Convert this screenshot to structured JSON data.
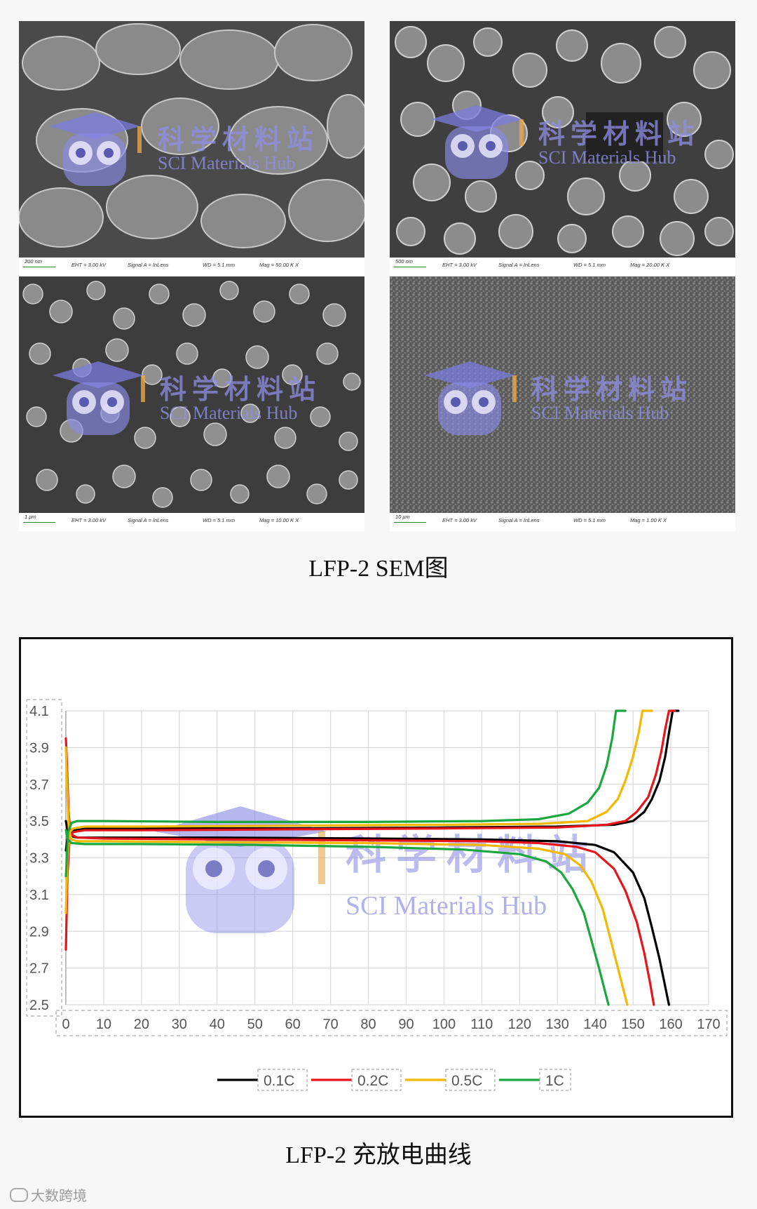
{
  "sem": {
    "caption": "LFP-2  SEM图",
    "panels": [
      {
        "scale": "200 nm",
        "eht": "EHT = 3.00 kV",
        "signal": "Signal A = InLens",
        "wd": "WD = 5.1 mm",
        "mag": "Mag = 50.00 K X"
      },
      {
        "scale": "500 nm",
        "eht": "EHT = 3.00 kV",
        "signal": "Signal A = InLens",
        "wd": "WD = 5.1 mm",
        "mag": "Mag = 20.00 K X"
      },
      {
        "scale": "1 μm",
        "eht": "EHT = 3.00 kV",
        "signal": "Signal A = InLens",
        "wd": "WD = 5.1 mm",
        "mag": "Mag = 10.00 K X"
      },
      {
        "scale": "10 μm",
        "eht": "EHT = 3.00 kV",
        "signal": "Signal A = InLens",
        "wd": "WD = 5.1 mm",
        "mag": "Mag = 1.00 K X"
      }
    ]
  },
  "watermark": {
    "cn": "科学材料站",
    "en": "SCI Materials Hub"
  },
  "chart_caption": "LFP-2  充放电曲线",
  "footer": {
    "text": "大数跨境"
  },
  "colors": {
    "c01": "#000000",
    "c02": "#e8141c",
    "c05": "#f5b800",
    "c1": "#1aa83e",
    "grid": "#d9d9d9",
    "watermark": "#8f8fe6"
  },
  "chart_data": {
    "type": "line",
    "title": "",
    "xlabel": "",
    "ylabel": "",
    "xlim": [
      0,
      170
    ],
    "ylim": [
      2.5,
      4.1
    ],
    "xticks": [
      "0",
      "10",
      "20",
      "30",
      "40",
      "50",
      "60",
      "70",
      "80",
      "90",
      "100",
      "110",
      "120",
      "130",
      "140",
      "150",
      "160",
      "170"
    ],
    "yticks": [
      "2.5",
      "2.7",
      "2.9",
      "3.1",
      "3.3",
      "3.5",
      "3.7",
      "3.9",
      "4.1"
    ],
    "grid": true,
    "legend_position": "bottom",
    "series": [
      {
        "name": "0.1C",
        "color": "#000000",
        "charge": [
          [
            0,
            3.34
          ],
          [
            0.5,
            3.42
          ],
          [
            1,
            3.44
          ],
          [
            2,
            3.45
          ],
          [
            5,
            3.46
          ],
          [
            20,
            3.46
          ],
          [
            60,
            3.46
          ],
          [
            100,
            3.465
          ],
          [
            130,
            3.47
          ],
          [
            145,
            3.48
          ],
          [
            150,
            3.5
          ],
          [
            153,
            3.55
          ],
          [
            155,
            3.62
          ],
          [
            157,
            3.72
          ],
          [
            158.5,
            3.85
          ],
          [
            159.5,
            3.98
          ],
          [
            160.5,
            4.1
          ],
          [
            162,
            4.1
          ]
        ],
        "discharge": [
          [
            0,
            3.5
          ],
          [
            0.5,
            3.44
          ],
          [
            1,
            3.42
          ],
          [
            3,
            3.41
          ],
          [
            10,
            3.41
          ],
          [
            40,
            3.41
          ],
          [
            80,
            3.405
          ],
          [
            110,
            3.4
          ],
          [
            130,
            3.39
          ],
          [
            140,
            3.37
          ],
          [
            145,
            3.33
          ],
          [
            150,
            3.22
          ],
          [
            153,
            3.08
          ],
          [
            155,
            2.92
          ],
          [
            157,
            2.75
          ],
          [
            158.5,
            2.6
          ],
          [
            159.5,
            2.5
          ]
        ]
      },
      {
        "name": "0.2C",
        "color": "#e8141c",
        "charge": [
          [
            0,
            2.8
          ],
          [
            0.4,
            3.2
          ],
          [
            1,
            3.42
          ],
          [
            2,
            3.44
          ],
          [
            5,
            3.45
          ],
          [
            20,
            3.45
          ],
          [
            60,
            3.455
          ],
          [
            100,
            3.46
          ],
          [
            130,
            3.465
          ],
          [
            143,
            3.48
          ],
          [
            148,
            3.5
          ],
          [
            151,
            3.55
          ],
          [
            154,
            3.63
          ],
          [
            156,
            3.75
          ],
          [
            157.5,
            3.88
          ],
          [
            158.5,
            4.0
          ],
          [
            159.5,
            4.1
          ],
          [
            161,
            4.1
          ]
        ],
        "discharge": [
          [
            0,
            3.95
          ],
          [
            0.3,
            3.8
          ],
          [
            0.7,
            3.55
          ],
          [
            1.2,
            3.43
          ],
          [
            3,
            3.41
          ],
          [
            10,
            3.405
          ],
          [
            40,
            3.4
          ],
          [
            80,
            3.395
          ],
          [
            110,
            3.39
          ],
          [
            125,
            3.38
          ],
          [
            135,
            3.36
          ],
          [
            140,
            3.33
          ],
          [
            145,
            3.24
          ],
          [
            148,
            3.12
          ],
          [
            151,
            2.95
          ],
          [
            153,
            2.78
          ],
          [
            154.5,
            2.62
          ],
          [
            155.5,
            2.5
          ]
        ]
      },
      {
        "name": "0.5C",
        "color": "#f5b800",
        "charge": [
          [
            0,
            3.0
          ],
          [
            0.4,
            3.3
          ],
          [
            1,
            3.44
          ],
          [
            2,
            3.46
          ],
          [
            5,
            3.47
          ],
          [
            20,
            3.47
          ],
          [
            60,
            3.475
          ],
          [
            100,
            3.48
          ],
          [
            125,
            3.485
          ],
          [
            138,
            3.5
          ],
          [
            143,
            3.55
          ],
          [
            146,
            3.62
          ],
          [
            148,
            3.72
          ],
          [
            150,
            3.85
          ],
          [
            151.5,
            3.98
          ],
          [
            152.5,
            4.1
          ],
          [
            155,
            4.1
          ]
        ],
        "discharge": [
          [
            0,
            3.9
          ],
          [
            0.3,
            3.7
          ],
          [
            0.8,
            3.45
          ],
          [
            1.5,
            3.4
          ],
          [
            3,
            3.39
          ],
          [
            10,
            3.39
          ],
          [
            40,
            3.385
          ],
          [
            80,
            3.38
          ],
          [
            110,
            3.37
          ],
          [
            125,
            3.35
          ],
          [
            132,
            3.32
          ],
          [
            136,
            3.26
          ],
          [
            139,
            3.17
          ],
          [
            142,
            3.02
          ],
          [
            144,
            2.86
          ],
          [
            146,
            2.7
          ],
          [
            147.5,
            2.58
          ],
          [
            148.5,
            2.5
          ]
        ]
      },
      {
        "name": "1C",
        "color": "#1aa83e",
        "charge": [
          [
            0,
            3.2
          ],
          [
            0.6,
            3.44
          ],
          [
            1.5,
            3.49
          ],
          [
            3,
            3.5
          ],
          [
            10,
            3.5
          ],
          [
            40,
            3.495
          ],
          [
            80,
            3.495
          ],
          [
            110,
            3.5
          ],
          [
            125,
            3.51
          ],
          [
            133,
            3.54
          ],
          [
            138,
            3.6
          ],
          [
            141,
            3.68
          ],
          [
            143,
            3.8
          ],
          [
            144.5,
            3.95
          ],
          [
            145.5,
            4.1
          ],
          [
            148,
            4.1
          ]
        ],
        "discharge": [
          [
            0,
            3.45
          ],
          [
            0.5,
            3.4
          ],
          [
            1.5,
            3.38
          ],
          [
            5,
            3.375
          ],
          [
            20,
            3.375
          ],
          [
            50,
            3.37
          ],
          [
            80,
            3.36
          ],
          [
            105,
            3.345
          ],
          [
            120,
            3.32
          ],
          [
            127,
            3.28
          ],
          [
            131,
            3.22
          ],
          [
            134,
            3.13
          ],
          [
            137,
            3.0
          ],
          [
            139,
            2.85
          ],
          [
            141,
            2.7
          ],
          [
            142.5,
            2.58
          ],
          [
            143.5,
            2.5
          ]
        ]
      }
    ]
  }
}
